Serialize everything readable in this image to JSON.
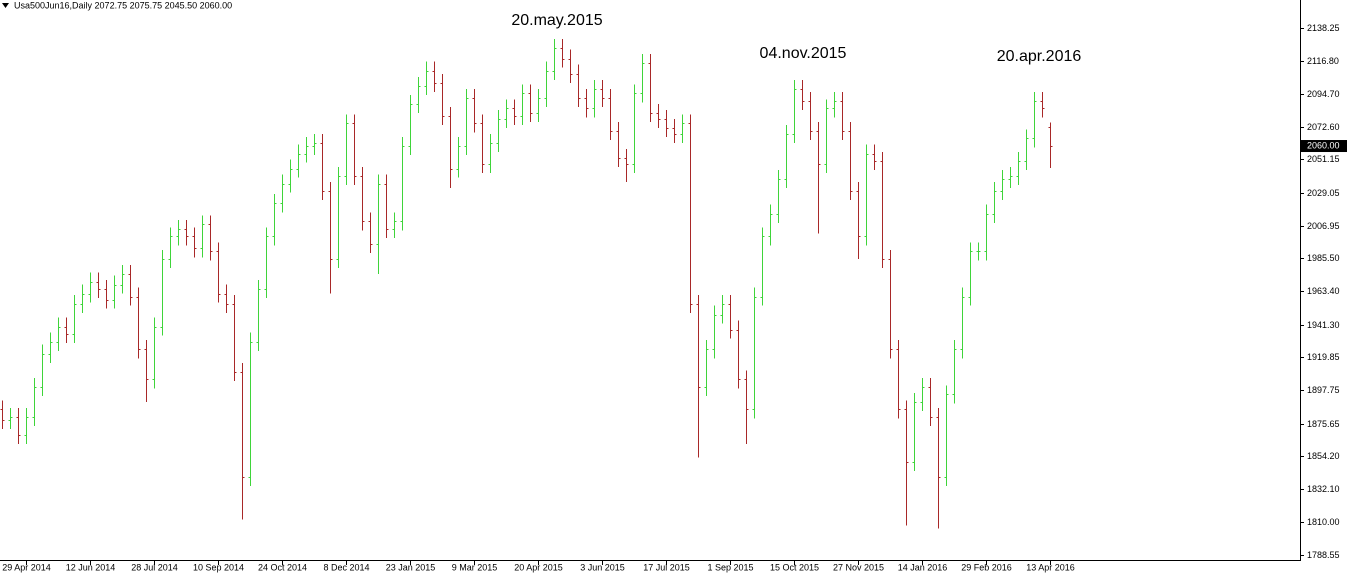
{
  "chart_data": {
    "type": "ohlc",
    "header": "Usa500Jun16,Daily  2072.75 2075.75 2045.50 2060.00",
    "annotations": [
      "20.may.2015",
      "04.nov.2015",
      "20.apr.2016"
    ],
    "up_color": "#3fd43a",
    "down_color": "#a82828",
    "ylim": [
      1785,
      2157
    ],
    "yticks": [
      2138.25,
      {
        "value": 2116.8,
        "label": "2116.80"
      },
      {
        "value": 2094.7,
        "label": "2094.70"
      },
      {
        "value": 2072.6,
        "label": "2072.60"
      },
      2051.15,
      2029.05,
      2006.95,
      {
        "value": 1985.5,
        "label": "1985.50"
      },
      {
        "value": 1963.4,
        "label": "1963.40"
      },
      {
        "value": 1941.3,
        "label": "1941.30"
      },
      1919.85,
      1897.75,
      1875.65,
      {
        "value": 1854.2,
        "label": "1854.20"
      },
      {
        "value": 1832.1,
        "label": "1832.10"
      },
      {
        "value": 1810,
        "label": "1810.00"
      },
      1788.55
    ],
    "last_price": {
      "value": 2060,
      "label": "2060.00"
    },
    "categories": [
      null,
      null,
      null,
      "29 Apr 2014",
      null,
      null,
      null,
      null,
      null,
      null,
      null,
      "12 Jun 2014",
      null,
      null,
      null,
      null,
      null,
      null,
      null,
      "28 Jul 2014",
      null,
      null,
      null,
      null,
      null,
      null,
      null,
      "10 Sep 2014",
      null,
      null,
      null,
      null,
      null,
      null,
      null,
      "24 Oct 2014",
      null,
      null,
      null,
      null,
      null,
      null,
      null,
      "8 Dec 2014",
      null,
      null,
      null,
      null,
      null,
      null,
      null,
      "23 Jan 2015",
      null,
      null,
      null,
      null,
      null,
      null,
      null,
      "9 Mar 2015",
      null,
      null,
      null,
      null,
      null,
      null,
      null,
      "20 Apr 2015",
      null,
      null,
      null,
      null,
      null,
      null,
      null,
      "3 Jun 2015",
      null,
      null,
      null,
      null,
      null,
      null,
      null,
      "17 Jul 2015",
      null,
      null,
      null,
      null,
      null,
      null,
      null,
      "1 Sep 2015",
      null,
      null,
      null,
      null,
      null,
      null,
      null,
      "15 Oct 2015",
      null,
      null,
      null,
      null,
      null,
      null,
      null,
      "27 Nov 2015",
      null,
      null,
      null,
      null,
      null,
      null,
      null,
      "14 Jan 2016",
      null,
      null,
      null,
      null,
      null,
      null,
      null,
      "29 Feb 2016",
      null,
      null,
      null,
      null,
      null,
      null,
      null,
      "13 Apr 2016"
    ],
    "open": [
      1885,
      1878,
      1880,
      1868,
      1880,
      1900,
      1922,
      1930,
      1940,
      1935,
      1955,
      1962,
      1970,
      1965,
      1958,
      1968,
      1975,
      1960,
      1925,
      1905,
      1940,
      1985,
      2000,
      2005,
      2000,
      1992,
      2008,
      1990,
      1962,
      1955,
      1910,
      1840,
      1930,
      1965,
      2000,
      2022,
      2035,
      2045,
      2055,
      2060,
      2062,
      2030,
      1985,
      2040,
      2075,
      2040,
      2010,
      1995,
      2035,
      2005,
      2010,
      2060,
      2088,
      2100,
      2110,
      2102,
      2080,
      2045,
      2060,
      2092,
      2075,
      2048,
      2062,
      2078,
      2085,
      2080,
      2095,
      2082,
      2092,
      2110,
      2125,
      2118,
      2108,
      2092,
      2085,
      2098,
      2092,
      2070,
      2052,
      2048,
      2095,
      2115,
      2082,
      2078,
      2072,
      2068,
      2075,
      1955,
      1900,
      1925,
      1948,
      1955,
      1938,
      1905,
      1885,
      1960,
      2000,
      2015,
      2038,
      2068,
      2098,
      2090,
      2070,
      2048,
      2085,
      2090,
      2070,
      2030,
      2000,
      2055,
      2050,
      1985,
      1925,
      1885,
      1850,
      1890,
      1900,
      1880,
      1840,
      1895,
      1925,
      1960,
      1990,
      1990,
      2015,
      2030,
      2038,
      2040,
      2050,
      2065,
      2090,
      2072.75
    ],
    "high": [
      1891,
      1886,
      1886,
      1886,
      1906,
      1928,
      1936,
      1946,
      1946,
      1961,
      1968,
      1976,
      1976,
      1971,
      1974,
      1981,
      1981,
      1966,
      1931,
      1946,
      1991,
      2006,
      2011,
      2011,
      2006,
      2014,
      2014,
      1996,
      1968,
      1961,
      1916,
      1936,
      1971,
      2006,
      2028,
      2041,
      2051,
      2061,
      2066,
      2068,
      2068,
      2036,
      2046,
      2081,
      2081,
      2046,
      2016,
      2041,
      2041,
      2016,
      2066,
      2094,
      2106,
      2116,
      2116,
      2108,
      2086,
      2066,
      2098,
      2098,
      2081,
      2068,
      2084,
      2091,
      2091,
      2101,
      2101,
      2098,
      2116,
      2131,
      2131,
      2124,
      2114,
      2098,
      2104,
      2104,
      2098,
      2076,
      2058,
      2101,
      2121,
      2121,
      2088,
      2084,
      2078,
      2081,
      2081,
      1961,
      1931,
      1954,
      1961,
      1961,
      1944,
      1911,
      1966,
      2006,
      2021,
      2044,
      2074,
      2104,
      2104,
      2096,
      2076,
      2091,
      2096,
      2096,
      2076,
      2036,
      2061,
      2061,
      2056,
      1991,
      1931,
      1891,
      1896,
      1906,
      1906,
      1886,
      1901,
      1931,
      1966,
      1996,
      1996,
      2021,
      2036,
      2044,
      2046,
      2056,
      2071,
      2096,
      2096,
      2075.75
    ],
    "low": [
      1872,
      1872,
      1862,
      1862,
      1874,
      1894,
      1916,
      1924,
      1929,
      1929,
      1949,
      1956,
      1959,
      1952,
      1952,
      1962,
      1954,
      1919,
      1890,
      1899,
      1934,
      1979,
      1994,
      1994,
      1986,
      1986,
      1984,
      1956,
      1949,
      1904,
      1812,
      1834,
      1924,
      1959,
      1994,
      2016,
      2029,
      2039,
      2049,
      2054,
      2024,
      1962,
      1979,
      2034,
      2034,
      2004,
      1989,
      1975,
      1999,
      1999,
      2004,
      2054,
      2082,
      2094,
      2096,
      2074,
      2032,
      2039,
      2054,
      2069,
      2042,
      2042,
      2056,
      2072,
      2074,
      2074,
      2076,
      2076,
      2086,
      2104,
      2112,
      2102,
      2086,
      2079,
      2079,
      2086,
      2064,
      2046,
      2036,
      2042,
      2089,
      2076,
      2072,
      2066,
      2062,
      2062,
      1949,
      1853,
      1894,
      1919,
      1942,
      1932,
      1899,
      1862,
      1879,
      1954,
      1994,
      2009,
      2032,
      2062,
      2084,
      2064,
      2002,
      2042,
      2079,
      2064,
      2024,
      1985,
      1994,
      2044,
      1979,
      1919,
      1879,
      1808,
      1844,
      1884,
      1874,
      1806,
      1834,
      1889,
      1919,
      1954,
      1984,
      1984,
      2009,
      2024,
      2032,
      2034,
      2044,
      2059,
      2079,
      2045.5
    ],
    "close": [
      1878,
      1880,
      1868,
      1880,
      1900,
      1922,
      1930,
      1940,
      1935,
      1955,
      1962,
      1970,
      1965,
      1958,
      1968,
      1975,
      1960,
      1925,
      1905,
      1940,
      1985,
      2000,
      2005,
      2000,
      1992,
      2008,
      1990,
      1962,
      1955,
      1910,
      1840,
      1930,
      1965,
      2000,
      2022,
      2035,
      2045,
      2055,
      2060,
      2062,
      2030,
      1985,
      2040,
      2075,
      2040,
      2010,
      1995,
      2035,
      2005,
      2010,
      2060,
      2088,
      2100,
      2110,
      2102,
      2080,
      2045,
      2060,
      2092,
      2075,
      2048,
      2062,
      2078,
      2085,
      2080,
      2095,
      2082,
      2092,
      2110,
      2125,
      2118,
      2108,
      2092,
      2085,
      2098,
      2092,
      2070,
      2052,
      2048,
      2095,
      2115,
      2082,
      2078,
      2072,
      2068,
      2075,
      1955,
      1900,
      1925,
      1948,
      1955,
      1938,
      1905,
      1885,
      1960,
      2000,
      2015,
      2038,
      2068,
      2098,
      2090,
      2070,
      2048,
      2085,
      2090,
      2070,
      2030,
      2000,
      2055,
      2050,
      1985,
      1925,
      1885,
      1850,
      1890,
      1900,
      1880,
      1840,
      1895,
      1925,
      1960,
      1990,
      1990,
      2015,
      2030,
      2038,
      2040,
      2050,
      2065,
      2090,
      2085,
      2060
    ]
  }
}
